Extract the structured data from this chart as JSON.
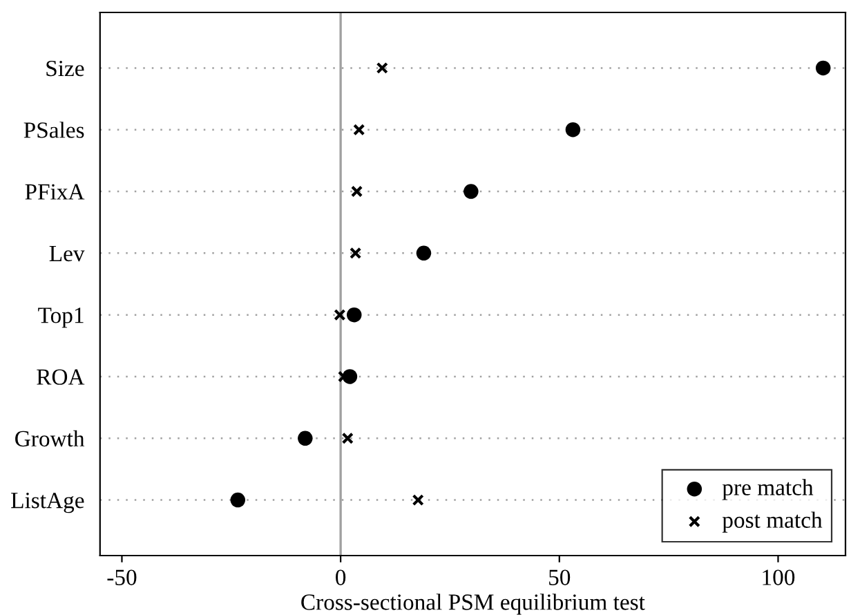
{
  "chart_data": {
    "type": "scatter",
    "xlabel": "Cross-sectional PSM equilibrium test",
    "categories": [
      "Size",
      "PSales",
      "PFixA",
      "Lev",
      "Top1",
      "ROA",
      "Growth",
      "ListAge"
    ],
    "orientation": "horizontal",
    "series": [
      {
        "name": "pre match",
        "color": "#000000",
        "marker": "circle",
        "values": [
          110.3,
          53.1,
          29.8,
          19.0,
          3.1,
          2.1,
          -8.1,
          -23.5
        ]
      },
      {
        "name": "post match",
        "color": "#000000",
        "marker": "cross",
        "values": [
          9.5,
          4.2,
          3.7,
          3.4,
          -0.2,
          0.7,
          1.6,
          17.7
        ]
      }
    ],
    "xlim": [
      -55,
      115.4
    ],
    "xticks": [
      -50,
      0,
      50,
      100
    ],
    "ref_lines": [
      {
        "axis": "x",
        "value": 0,
        "color": "#a0a0a0"
      }
    ],
    "grid": "y",
    "legend": "bottom right"
  }
}
